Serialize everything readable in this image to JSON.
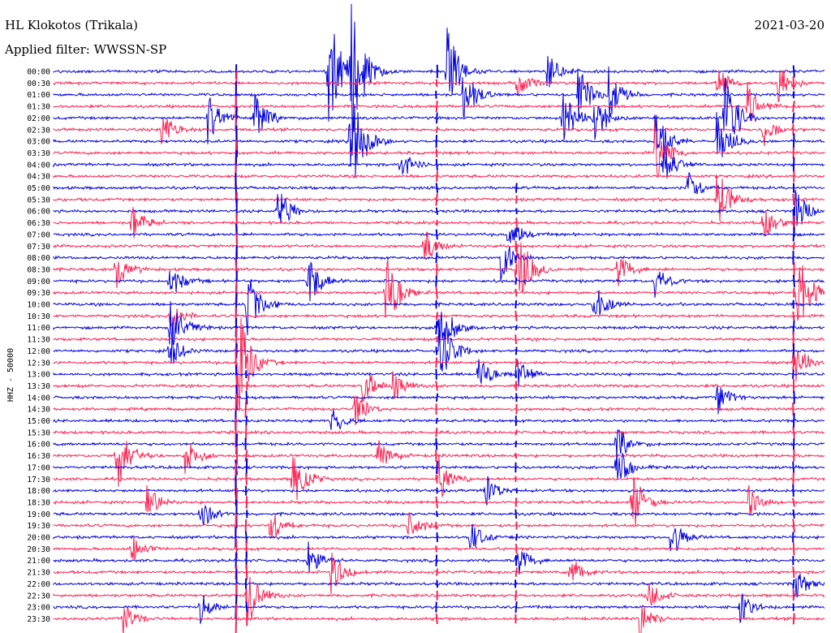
{
  "header": {
    "station": "HL Klokotos (Trikala)",
    "date": "2021-03-20",
    "filter": "Applied filter: WWSSN-SP"
  },
  "chart_data": {
    "type": "helicorder",
    "ylabel": "HHZ - 50000",
    "tick_labels": [
      "00:00",
      "00:30",
      "01:00",
      "01:30",
      "02:00",
      "02:30",
      "03:00",
      "03:30",
      "04:00",
      "04:30",
      "05:00",
      "05:30",
      "06:00",
      "06:30",
      "07:00",
      "07:30",
      "08:00",
      "08:30",
      "09:00",
      "09:30",
      "10:00",
      "10:30",
      "11:00",
      "11:30",
      "12:00",
      "12:30",
      "13:00",
      "13:30",
      "14:00",
      "14:30",
      "15:00",
      "15:30",
      "16:00",
      "16:30",
      "17:00",
      "17:30",
      "18:00",
      "18:30",
      "19:00",
      "19:30",
      "20:00",
      "20:30",
      "21:00",
      "21:30",
      "22:00",
      "22:30",
      "23:00",
      "23:30"
    ],
    "line_colors": [
      "#0000e0",
      "#ff2050"
    ],
    "grid": false,
    "events": [
      {
        "line": 0,
        "at": 0.356,
        "amp": 85
      },
      {
        "line": 0,
        "at": 0.386,
        "amp": 95
      },
      {
        "line": 0,
        "at": 0.51,
        "amp": 60
      },
      {
        "line": 0,
        "at": 0.64,
        "amp": 26
      },
      {
        "line": 1,
        "at": 0.6,
        "amp": 24
      },
      {
        "line": 1,
        "at": 0.86,
        "amp": 22
      },
      {
        "line": 1,
        "at": 0.94,
        "amp": 26
      },
      {
        "line": 2,
        "at": 0.53,
        "amp": 40
      },
      {
        "line": 2,
        "at": 0.68,
        "amp": 40
      },
      {
        "line": 2,
        "at": 0.72,
        "amp": 35
      },
      {
        "line": 3,
        "at": 0.9,
        "amp": 30
      },
      {
        "line": 4,
        "at": 0.2,
        "amp": 38
      },
      {
        "line": 4,
        "at": 0.26,
        "amp": 35
      },
      {
        "line": 4,
        "at": 0.66,
        "amp": 36
      },
      {
        "line": 4,
        "at": 0.7,
        "amp": 40
      },
      {
        "line": 4,
        "at": 0.87,
        "amp": 60
      },
      {
        "line": 5,
        "at": 0.14,
        "amp": 24
      },
      {
        "line": 5,
        "at": 0.92,
        "amp": 24
      },
      {
        "line": 6,
        "at": 0.385,
        "amp": 80
      },
      {
        "line": 6,
        "at": 0.78,
        "amp": 40
      },
      {
        "line": 6,
        "at": 0.86,
        "amp": 40
      },
      {
        "line": 7,
        "at": 0.78,
        "amp": 40
      },
      {
        "line": 8,
        "at": 0.45,
        "amp": 24
      },
      {
        "line": 8,
        "at": 0.79,
        "amp": 30
      },
      {
        "line": 10,
        "at": 0.82,
        "amp": 26
      },
      {
        "line": 11,
        "at": 0.86,
        "amp": 50
      },
      {
        "line": 12,
        "at": 0.29,
        "amp": 35
      },
      {
        "line": 12,
        "at": 0.96,
        "amp": 34
      },
      {
        "line": 13,
        "at": 0.1,
        "amp": 28
      },
      {
        "line": 13,
        "at": 0.92,
        "amp": 26
      },
      {
        "line": 14,
        "at": 0.59,
        "amp": 24
      },
      {
        "line": 15,
        "at": 0.48,
        "amp": 26
      },
      {
        "line": 16,
        "at": 0.58,
        "amp": 30
      },
      {
        "line": 17,
        "at": 0.08,
        "amp": 28
      },
      {
        "line": 17,
        "at": 0.6,
        "amp": 60
      },
      {
        "line": 17,
        "at": 0.73,
        "amp": 24
      },
      {
        "line": 18,
        "at": 0.15,
        "amp": 26
      },
      {
        "line": 18,
        "at": 0.33,
        "amp": 36
      },
      {
        "line": 18,
        "at": 0.78,
        "amp": 22
      },
      {
        "line": 19,
        "at": 0.43,
        "amp": 55
      },
      {
        "line": 19,
        "at": 0.965,
        "amp": 60
      },
      {
        "line": 20,
        "at": 0.25,
        "amp": 50
      },
      {
        "line": 20,
        "at": 0.7,
        "amp": 30
      },
      {
        "line": 21,
        "at": 0.15,
        "amp": 22
      },
      {
        "line": 22,
        "at": 0.15,
        "amp": 45
      },
      {
        "line": 22,
        "at": 0.5,
        "amp": 45
      },
      {
        "line": 24,
        "at": 0.15,
        "amp": 26
      },
      {
        "line": 24,
        "at": 0.5,
        "amp": 50
      },
      {
        "line": 25,
        "at": 0.24,
        "amp": 70
      },
      {
        "line": 25,
        "at": 0.96,
        "amp": 30
      },
      {
        "line": 26,
        "at": 0.55,
        "amp": 26
      },
      {
        "line": 26,
        "at": 0.6,
        "amp": 22
      },
      {
        "line": 27,
        "at": 0.4,
        "amp": 30
      },
      {
        "line": 27,
        "at": 0.44,
        "amp": 22
      },
      {
        "line": 28,
        "at": 0.86,
        "amp": 24
      },
      {
        "line": 29,
        "at": 0.39,
        "amp": 24
      },
      {
        "line": 30,
        "at": 0.36,
        "amp": 24
      },
      {
        "line": 32,
        "at": 0.73,
        "amp": 24
      },
      {
        "line": 33,
        "at": 0.08,
        "amp": 55
      },
      {
        "line": 33,
        "at": 0.17,
        "amp": 26
      },
      {
        "line": 33,
        "at": 0.42,
        "amp": 26
      },
      {
        "line": 34,
        "at": 0.73,
        "amp": 30
      },
      {
        "line": 35,
        "at": 0.31,
        "amp": 40
      },
      {
        "line": 35,
        "at": 0.5,
        "amp": 30
      },
      {
        "line": 36,
        "at": 0.56,
        "amp": 22
      },
      {
        "line": 37,
        "at": 0.12,
        "amp": 24
      },
      {
        "line": 37,
        "at": 0.75,
        "amp": 40
      },
      {
        "line": 37,
        "at": 0.9,
        "amp": 24
      },
      {
        "line": 38,
        "at": 0.19,
        "amp": 22
      },
      {
        "line": 39,
        "at": 0.28,
        "amp": 24
      },
      {
        "line": 39,
        "at": 0.46,
        "amp": 26
      },
      {
        "line": 40,
        "at": 0.54,
        "amp": 22
      },
      {
        "line": 40,
        "at": 0.8,
        "amp": 30
      },
      {
        "line": 41,
        "at": 0.1,
        "amp": 26
      },
      {
        "line": 42,
        "at": 0.33,
        "amp": 28
      },
      {
        "line": 42,
        "at": 0.6,
        "amp": 22
      },
      {
        "line": 43,
        "at": 0.36,
        "amp": 30
      },
      {
        "line": 43,
        "at": 0.67,
        "amp": 24
      },
      {
        "line": 44,
        "at": 0.96,
        "amp": 24
      },
      {
        "line": 45,
        "at": 0.25,
        "amp": 45
      },
      {
        "line": 45,
        "at": 0.77,
        "amp": 22
      },
      {
        "line": 46,
        "at": 0.19,
        "amp": 22
      },
      {
        "line": 46,
        "at": 0.89,
        "amp": 22
      },
      {
        "line": 47,
        "at": 0.09,
        "amp": 24
      },
      {
        "line": 47,
        "at": 0.76,
        "amp": 26
      }
    ],
    "spikes": [
      {
        "at": 0.237,
        "from": 0,
        "to": 47,
        "amp": 14
      },
      {
        "at": 0.25,
        "from": 25,
        "to": 47,
        "amp": 8
      },
      {
        "at": 0.497,
        "from": 0,
        "to": 47,
        "amp": 6
      },
      {
        "at": 0.6,
        "from": 10,
        "to": 47,
        "amp": 5
      },
      {
        "at": 0.96,
        "from": 0,
        "to": 47,
        "amp": 7
      }
    ]
  }
}
